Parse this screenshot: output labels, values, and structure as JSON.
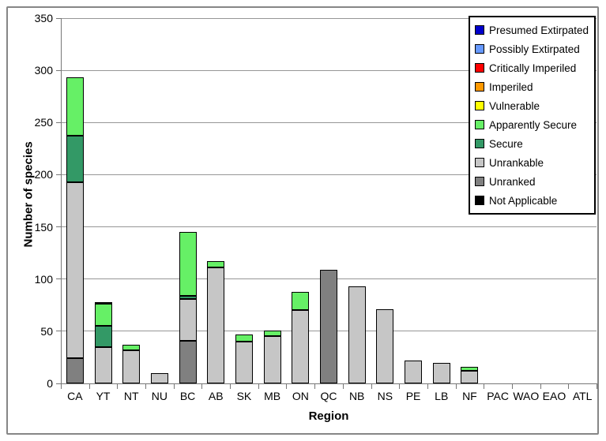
{
  "chart_data": {
    "type": "bar",
    "stacked": true,
    "title": "",
    "xlabel": "Region",
    "ylabel": "Number of species",
    "ylim": [
      0,
      350
    ],
    "ytick_interval": 50,
    "yticks": [
      0,
      50,
      100,
      150,
      200,
      250,
      300,
      350
    ],
    "grid": true,
    "legend_position": "top-right",
    "categories": [
      "CA",
      "YT",
      "NT",
      "NU",
      "BC",
      "AB",
      "SK",
      "MB",
      "ON",
      "QC",
      "NB",
      "NS",
      "PE",
      "LB",
      "NF",
      "PAC",
      "WAO",
      "EAO",
      "ATL"
    ],
    "series": [
      {
        "name": "Presumed Extirpated",
        "color": "#0000CC",
        "values": [
          0,
          0,
          0,
          0,
          0,
          0,
          0,
          0,
          0,
          0,
          0,
          0,
          0,
          0,
          0,
          0,
          0,
          0,
          0
        ]
      },
      {
        "name": "Possibly Extirpated",
        "color": "#6699FF",
        "values": [
          0,
          0,
          0,
          0,
          0,
          0,
          0,
          0,
          0,
          0,
          0,
          0,
          0,
          0,
          0,
          0,
          0,
          0,
          0
        ]
      },
      {
        "name": "Critically Imperiled",
        "color": "#FF0000",
        "values": [
          0,
          0,
          0,
          0,
          0,
          0,
          0,
          0,
          0,
          0,
          0,
          0,
          0,
          0,
          0,
          0,
          0,
          0,
          0
        ]
      },
      {
        "name": "Imperiled",
        "color": "#FF9900",
        "values": [
          0,
          0,
          0,
          0,
          0,
          0,
          0,
          0,
          0,
          0,
          0,
          0,
          0,
          0,
          0,
          0,
          0,
          0,
          0
        ]
      },
      {
        "name": "Vulnerable",
        "color": "#FFFF00",
        "values": [
          0,
          2,
          0,
          0,
          0,
          0,
          0,
          0,
          0,
          0,
          0,
          0,
          0,
          0,
          0,
          0,
          0,
          0,
          0
        ]
      },
      {
        "name": "Apparently Secure",
        "color": "#66F066",
        "values": [
          56,
          21,
          5,
          0,
          61,
          6,
          7,
          6,
          18,
          0,
          0,
          0,
          0,
          0,
          4,
          0,
          0,
          0,
          0
        ]
      },
      {
        "name": "Secure",
        "color": "#339966",
        "values": [
          44,
          20,
          0,
          0,
          3,
          0,
          0,
          0,
          0,
          0,
          0,
          0,
          0,
          0,
          0,
          0,
          0,
          0,
          0
        ]
      },
      {
        "name": "Unrankable",
        "color": "#C6C6C6",
        "values": [
          169,
          35,
          32,
          10,
          40,
          111,
          40,
          45,
          70,
          0,
          93,
          71,
          22,
          20,
          12,
          0,
          0,
          0,
          0
        ]
      },
      {
        "name": "Unranked",
        "color": "#808080",
        "values": [
          24,
          0,
          0,
          0,
          41,
          0,
          0,
          0,
          0,
          109,
          0,
          0,
          0,
          0,
          0,
          0,
          0,
          0,
          0
        ]
      },
      {
        "name": "Not Applicable",
        "color": "#000000",
        "values": [
          0,
          0,
          0,
          0,
          0,
          0,
          0,
          0,
          0,
          0,
          0,
          0,
          0,
          0,
          0,
          0,
          0,
          0,
          0
        ]
      }
    ],
    "totals": [
      293,
      78,
      37,
      10,
      145,
      117,
      47,
      51,
      88,
      109,
      93,
      71,
      22,
      20,
      16,
      0,
      0,
      0,
      0
    ],
    "colors": {
      "gridline": "#969696",
      "axis": "#777777",
      "frame_border": "#868686",
      "bar_outline": "#000000"
    }
  }
}
